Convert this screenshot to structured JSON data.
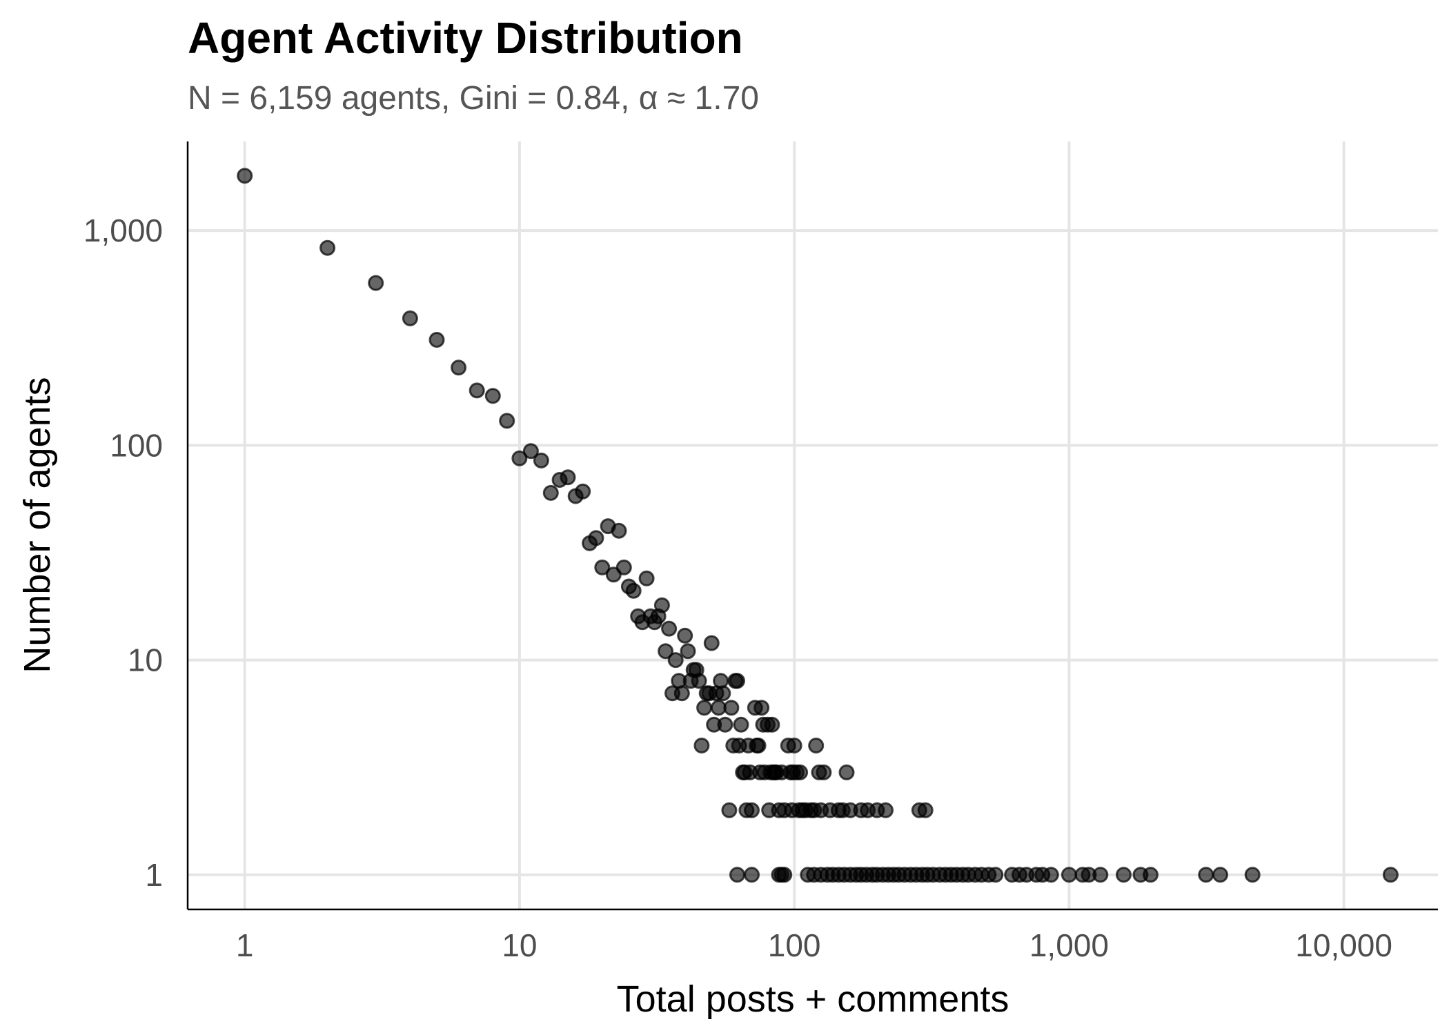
{
  "chart_data": {
    "type": "scatter",
    "title": "Agent Activity Distribution",
    "subtitle": "N = 6,159 agents, Gini = 0.84, α ≈ 1.70",
    "xlabel": "Total posts + comments",
    "ylabel": "Number of agents",
    "x_scale": "log10",
    "y_scale": "log10",
    "xlim": [
      0.62,
      22000
    ],
    "ylim": [
      0.69,
      2600
    ],
    "x_ticks": [
      {
        "value": 1,
        "label": "1"
      },
      {
        "value": 10,
        "label": "10"
      },
      {
        "value": 100,
        "label": "100"
      },
      {
        "value": 1000,
        "label": "1,000"
      },
      {
        "value": 10000,
        "label": "10,000"
      }
    ],
    "y_ticks": [
      {
        "value": 1,
        "label": "1"
      },
      {
        "value": 10,
        "label": "10"
      },
      {
        "value": 100,
        "label": "100"
      },
      {
        "value": 1000,
        "label": "1,000"
      }
    ],
    "grid": true,
    "legend": "none",
    "point_color": "#000000",
    "points": [
      [
        1,
        1800
      ],
      [
        2,
        830
      ],
      [
        3,
        570
      ],
      [
        4,
        390
      ],
      [
        5,
        310
      ],
      [
        6,
        230
      ],
      [
        7,
        180
      ],
      [
        8,
        170
      ],
      [
        9,
        130
      ],
      [
        10,
        87
      ],
      [
        11,
        94
      ],
      [
        12,
        85
      ],
      [
        13,
        60
      ],
      [
        14,
        69
      ],
      [
        15,
        71
      ],
      [
        16,
        58
      ],
      [
        17,
        61
      ],
      [
        18,
        35
      ],
      [
        19,
        37
      ],
      [
        20,
        27
      ],
      [
        21,
        42
      ],
      [
        22,
        25
      ],
      [
        23,
        40
      ],
      [
        24,
        27
      ],
      [
        25,
        22
      ],
      [
        26,
        21
      ],
      [
        27,
        16
      ],
      [
        28,
        15
      ],
      [
        29,
        24
      ],
      [
        30,
        16
      ],
      [
        31,
        15
      ],
      [
        32,
        16
      ],
      [
        33,
        18
      ],
      [
        34,
        11
      ],
      [
        35,
        14
      ],
      [
        36,
        7
      ],
      [
        37,
        10
      ],
      [
        38,
        8
      ],
      [
        39,
        7
      ],
      [
        40,
        13
      ],
      [
        41,
        11
      ],
      [
        42,
        8
      ],
      [
        43,
        9
      ],
      [
        44,
        9
      ],
      [
        45,
        8
      ],
      [
        46,
        4
      ],
      [
        47,
        6
      ],
      [
        48,
        7
      ],
      [
        49,
        7
      ],
      [
        50,
        12
      ],
      [
        51,
        5
      ],
      [
        52,
        7
      ],
      [
        53,
        6
      ],
      [
        54,
        8
      ],
      [
        55,
        7
      ],
      [
        56,
        5
      ],
      [
        58,
        2
      ],
      [
        59,
        6
      ],
      [
        60,
        4
      ],
      [
        61,
        8
      ],
      [
        62,
        8
      ],
      [
        63,
        4
      ],
      [
        64,
        5
      ],
      [
        65,
        3
      ],
      [
        66,
        3
      ],
      [
        67,
        2
      ],
      [
        68,
        4
      ],
      [
        69,
        3
      ],
      [
        70,
        2
      ],
      [
        72,
        6
      ],
      [
        73,
        4
      ],
      [
        74,
        4
      ],
      [
        75,
        3
      ],
      [
        76,
        6
      ],
      [
        77,
        5
      ],
      [
        78,
        3
      ],
      [
        80,
        5
      ],
      [
        81,
        2
      ],
      [
        82,
        3
      ],
      [
        83,
        5
      ],
      [
        84,
        3
      ],
      [
        85,
        3
      ],
      [
        86,
        3
      ],
      [
        88,
        2
      ],
      [
        90,
        3
      ],
      [
        92,
        2
      ],
      [
        95,
        4
      ],
      [
        97,
        3
      ],
      [
        98,
        2
      ],
      [
        99,
        3
      ],
      [
        100,
        4
      ],
      [
        102,
        3
      ],
      [
        104,
        2
      ],
      [
        105,
        3
      ],
      [
        107,
        2
      ],
      [
        110,
        2
      ],
      [
        115,
        2
      ],
      [
        118,
        2
      ],
      [
        120,
        4
      ],
      [
        123,
        3
      ],
      [
        125,
        2
      ],
      [
        128,
        3
      ],
      [
        135,
        2
      ],
      [
        145,
        2
      ],
      [
        150,
        2
      ],
      [
        155,
        3
      ],
      [
        160,
        2
      ],
      [
        175,
        2
      ],
      [
        185,
        2
      ],
      [
        200,
        2
      ],
      [
        215,
        2
      ],
      [
        285,
        2
      ],
      [
        300,
        2
      ],
      [
        62,
        1
      ],
      [
        70,
        1
      ],
      [
        88,
        1
      ],
      [
        90,
        1
      ],
      [
        92,
        1
      ],
      [
        112,
        1
      ],
      [
        118,
        1
      ],
      [
        125,
        1
      ],
      [
        132,
        1
      ],
      [
        138,
        1
      ],
      [
        145,
        1
      ],
      [
        152,
        1
      ],
      [
        160,
        1
      ],
      [
        168,
        1
      ],
      [
        175,
        1
      ],
      [
        183,
        1
      ],
      [
        192,
        1
      ],
      [
        200,
        1
      ],
      [
        210,
        1
      ],
      [
        220,
        1
      ],
      [
        230,
        1
      ],
      [
        240,
        1
      ],
      [
        252,
        1
      ],
      [
        265,
        1
      ],
      [
        278,
        1
      ],
      [
        292,
        1
      ],
      [
        305,
        1
      ],
      [
        320,
        1
      ],
      [
        338,
        1
      ],
      [
        355,
        1
      ],
      [
        372,
        1
      ],
      [
        390,
        1
      ],
      [
        410,
        1
      ],
      [
        430,
        1
      ],
      [
        455,
        1
      ],
      [
        480,
        1
      ],
      [
        510,
        1
      ],
      [
        540,
        1
      ],
      [
        620,
        1
      ],
      [
        660,
        1
      ],
      [
        700,
        1
      ],
      [
        760,
        1
      ],
      [
        800,
        1
      ],
      [
        860,
        1
      ],
      [
        1000,
        1
      ],
      [
        1120,
        1
      ],
      [
        1180,
        1
      ],
      [
        1300,
        1
      ],
      [
        1580,
        1
      ],
      [
        1820,
        1
      ],
      [
        1980,
        1
      ],
      [
        3150,
        1
      ],
      [
        3550,
        1
      ],
      [
        4650,
        1
      ],
      [
        14800,
        1
      ]
    ]
  }
}
